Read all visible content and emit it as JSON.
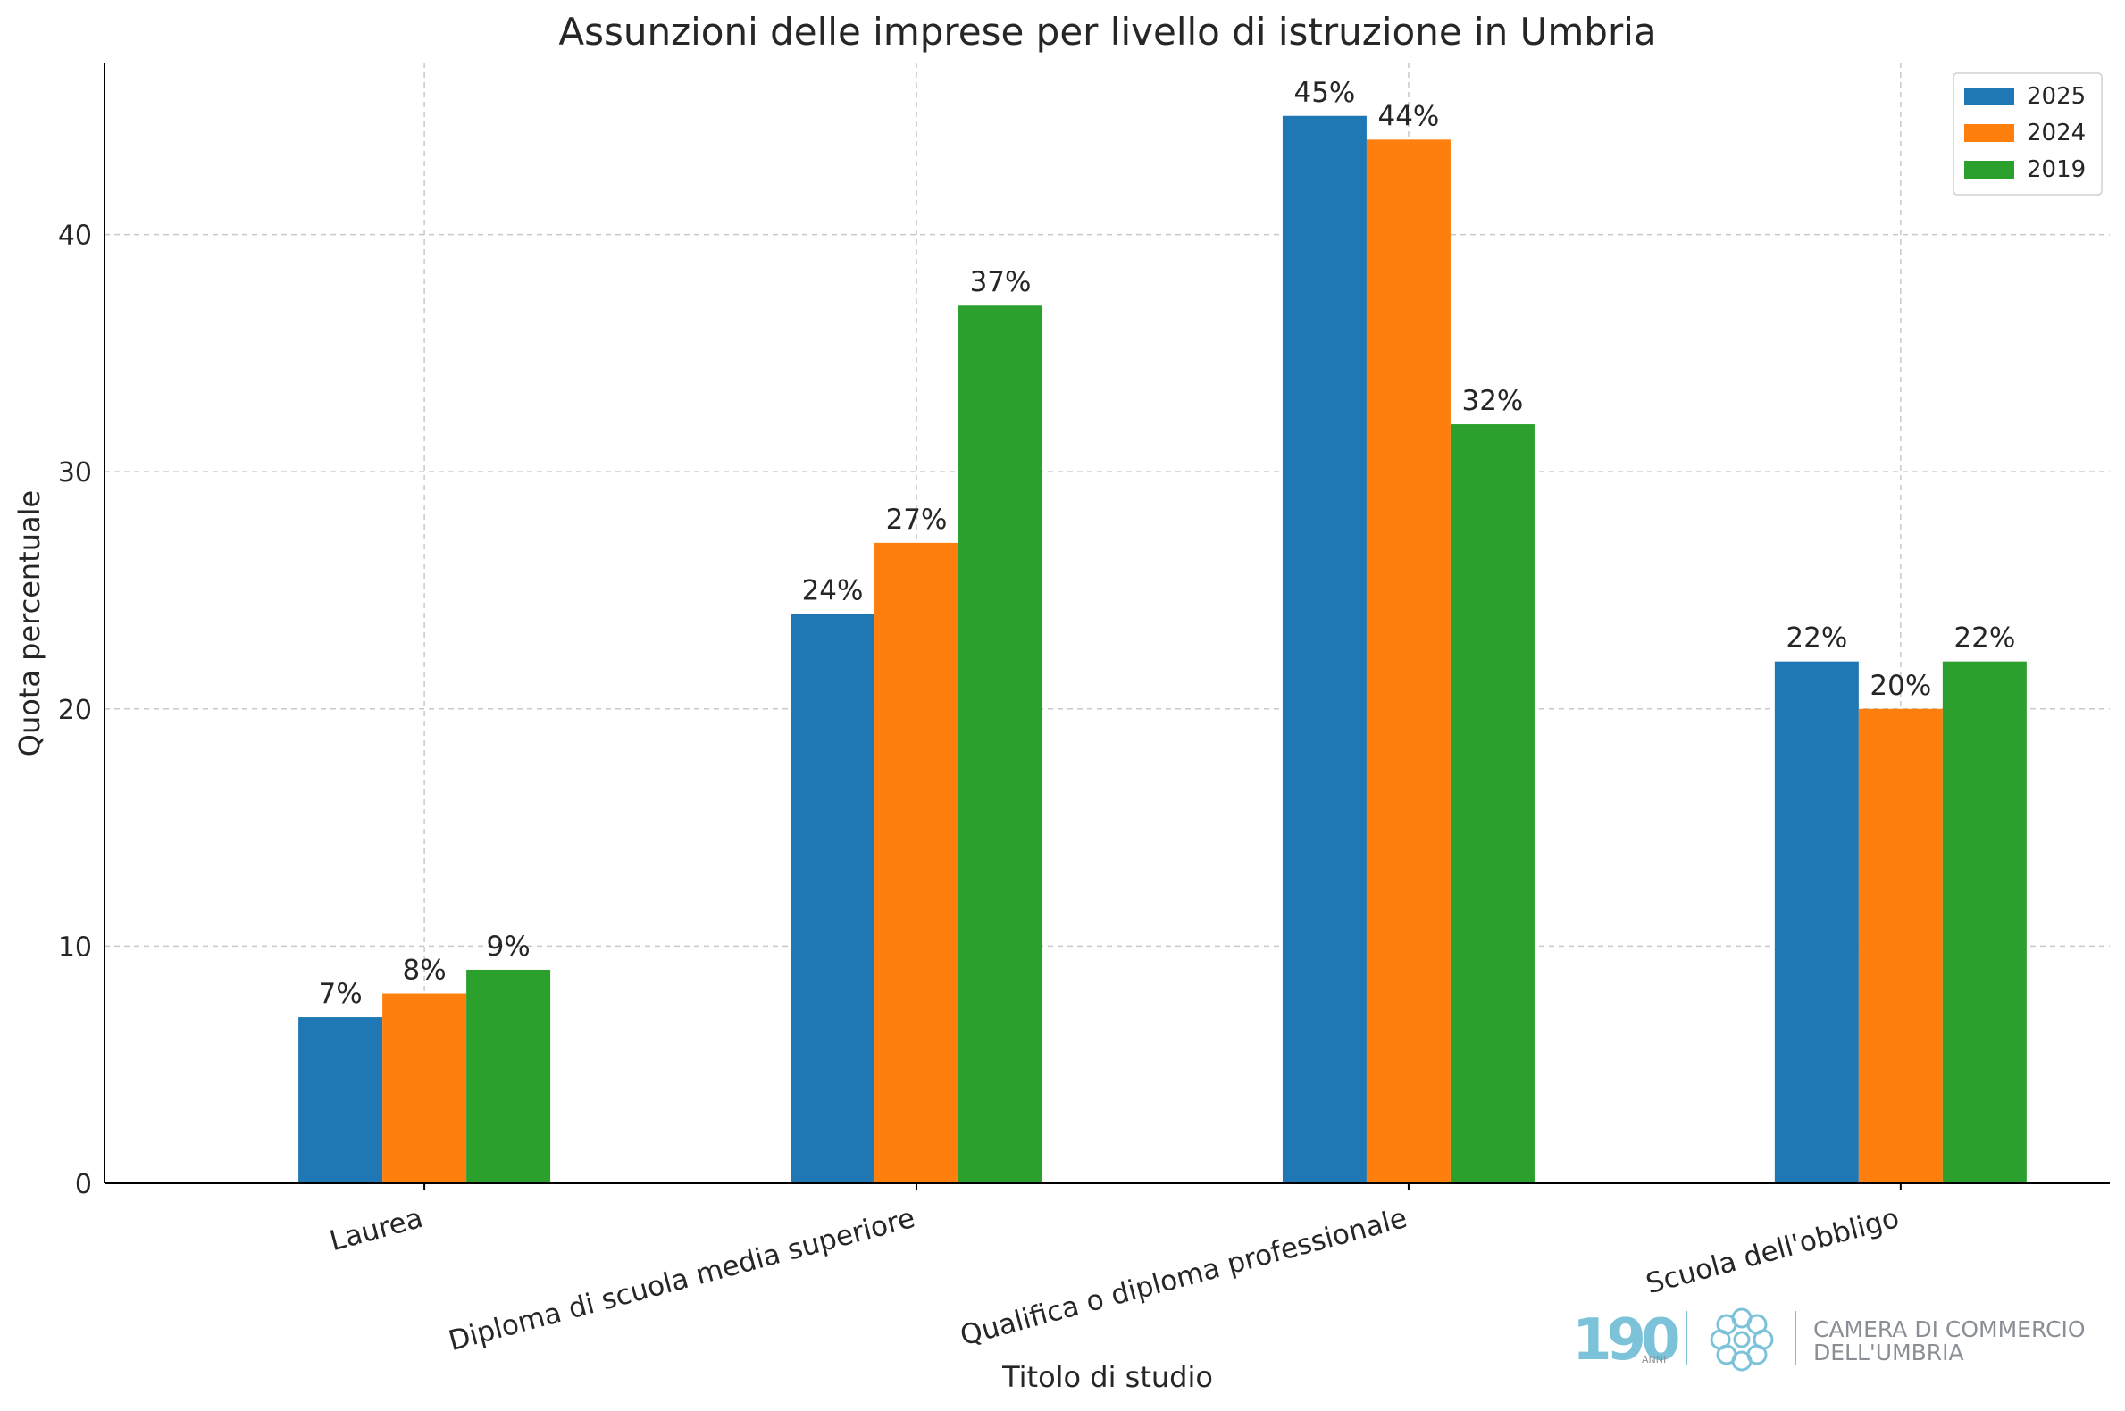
{
  "chart_data": {
    "type": "bar",
    "title": "Assunzioni delle imprese per livello di istruzione in Umbria",
    "xlabel": "Titolo di studio",
    "ylabel": "Quota percentuale",
    "categories": [
      "Laurea",
      "Diploma di scuola media superiore",
      "Qualifica o diploma professionale",
      "Scuola dell'obbligo"
    ],
    "series": [
      {
        "name": "2025",
        "color": "#1f77b4",
        "values": [
          7,
          24,
          45,
          22
        ]
      },
      {
        "name": "2024",
        "color": "#ff7f0e",
        "values": [
          8,
          27,
          44,
          20
        ]
      },
      {
        "name": "2019",
        "color": "#2ca02c",
        "values": [
          9,
          37,
          32,
          22
        ]
      }
    ],
    "value_suffix": "%",
    "ylim": [
      0,
      47.25
    ],
    "yticks": [
      0,
      10,
      20,
      30,
      40
    ],
    "grid": true,
    "legend_position": "top-right",
    "x_tick_rotation": "slanted"
  },
  "logo": {
    "anniversary_text": "190",
    "anniversary_sub": "ANNI",
    "org_line1": "CAMERA DI COMMERCIO",
    "org_line2": "DELL'UMBRIA",
    "color_light": "#7cc3d9",
    "color_gray": "#8a8f96"
  }
}
